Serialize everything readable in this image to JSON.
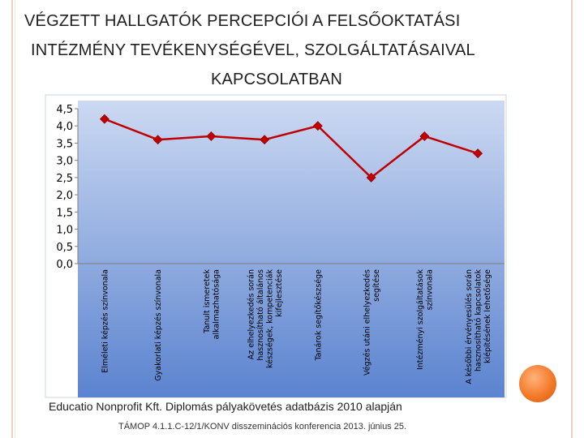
{
  "page": {
    "title_lines": [
      "VÉGZETT HALLGATÓK PERCEPCIÓI A FELSŐOKTATÁSI",
      "INTÉZMÉNY TEVÉKENYSÉGÉVEL, SZOLGÁLTATÁSAIVAL",
      "KAPCSOLATBAN"
    ],
    "source": "Educatio Nonprofit Kft. Diplomás pályakövetés adatbázis 2010 alapján",
    "footer": "TÁMOP 4.1.1.C-12/1/KONV disszeminációs konferencia 2013. június 25."
  },
  "colors": {
    "plot_top": "#ccd9f2",
    "plot_bottom": "#5b83cf",
    "series": "#c00000",
    "frame": "#9fb4d9"
  },
  "chart_data": {
    "type": "line",
    "title": "",
    "xlabel": "",
    "ylabel": "",
    "ylim": [
      0,
      4.5
    ],
    "yticks": [
      "0,0",
      "0,5",
      "1,0",
      "1,5",
      "2,0",
      "2,5",
      "3,0",
      "3,5",
      "4,0",
      "4,5"
    ],
    "grid": false,
    "legend": "none",
    "categories": [
      [
        "Elméleti képzés színvonala"
      ],
      [
        "Gyakorlati képzés színvonala"
      ],
      [
        "Tanult ismeretek",
        "alkalmazhatósága"
      ],
      [
        "Az elhelyezkedés során",
        "hasznosítható általános",
        "készségek, kompetenciák",
        "kifejlesztése"
      ],
      [
        "Tanárok segítőkészsége"
      ],
      [
        "Végzés utáni elhelyezkedés",
        "segítése"
      ],
      [
        "Intézményi szolgáltatások",
        "színvonala"
      ],
      [
        "A későbbi érvényesülés során",
        "hasznosítható kapcsolatok",
        "kiépítésének lehetősége"
      ]
    ],
    "series": [
      {
        "values": [
          4.2,
          3.6,
          3.7,
          3.6,
          4.0,
          2.5,
          3.7,
          3.2
        ]
      }
    ]
  }
}
